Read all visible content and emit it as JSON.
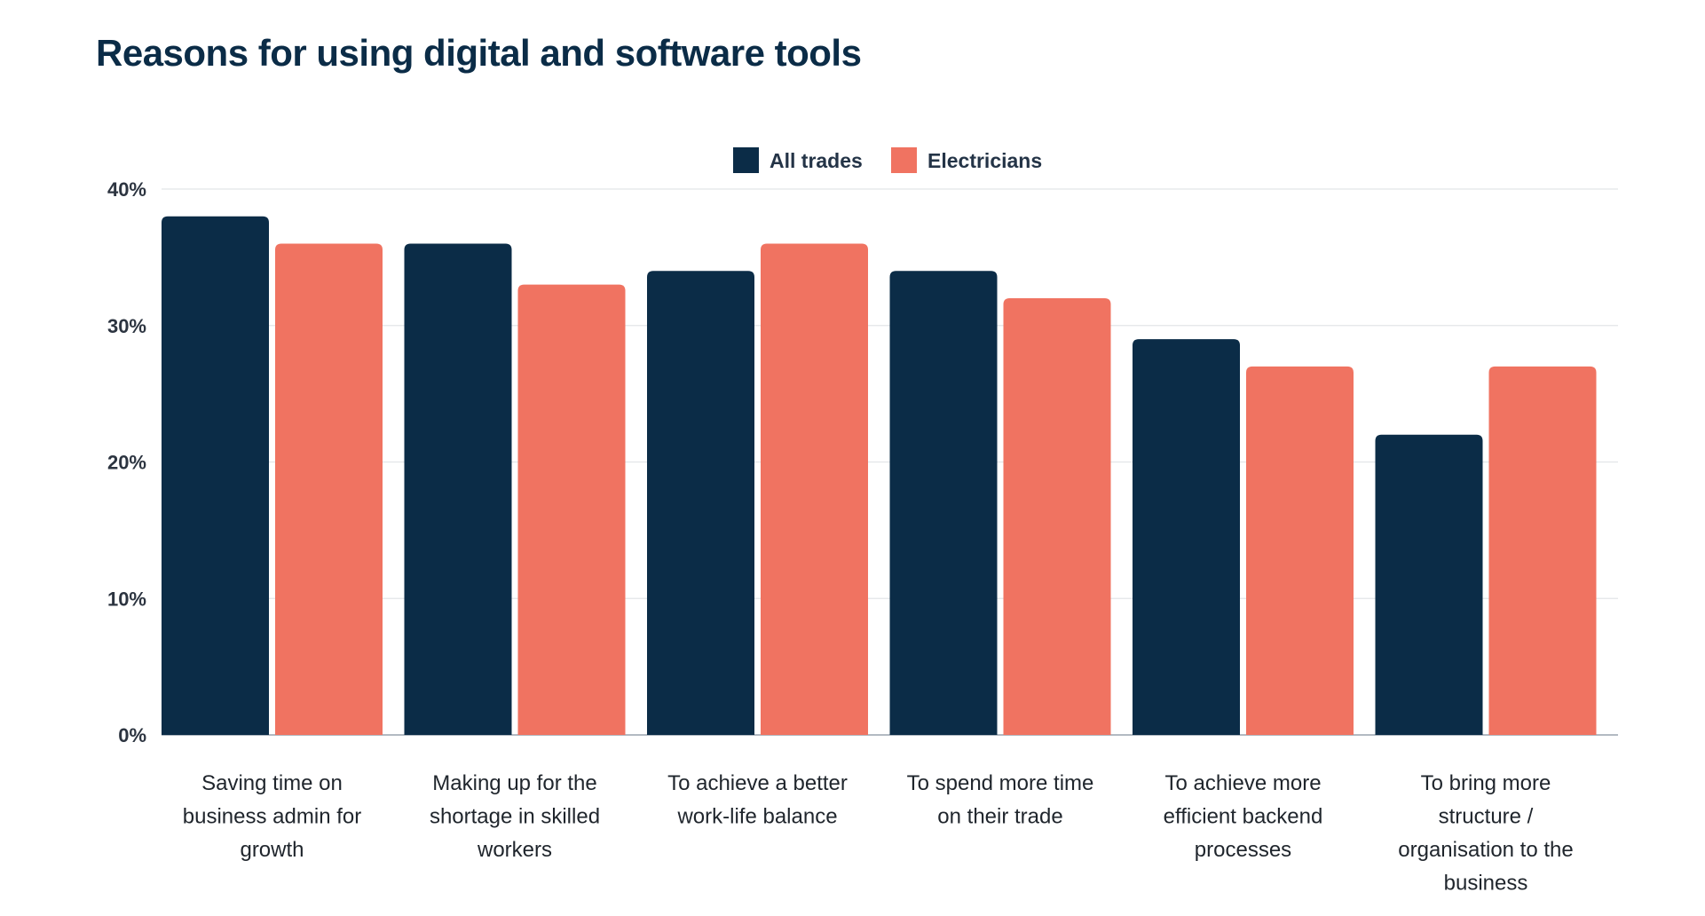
{
  "chart_data": {
    "type": "bar",
    "title": "Reasons for using digital and software tools",
    "categories": [
      [
        "Saving time on",
        "business admin for",
        "growth"
      ],
      [
        "Making up for the",
        "shortage in skilled",
        "workers"
      ],
      [
        "To achieve a better",
        "work-life balance"
      ],
      [
        "To spend more time",
        "on their trade"
      ],
      [
        "To achieve more",
        "efficient backend",
        "processes"
      ],
      [
        "To bring more",
        "structure /",
        "organisation to the",
        "business"
      ]
    ],
    "series": [
      {
        "name": "All trades",
        "color": "#0b2c47",
        "values": [
          38,
          36,
          34,
          34,
          29,
          22
        ]
      },
      {
        "name": "Electricians",
        "color": "#f07361",
        "values": [
          36,
          33,
          36,
          32,
          27,
          27
        ]
      }
    ],
    "ylim": [
      0,
      40
    ],
    "yticks": [
      0,
      10,
      20,
      30,
      40
    ],
    "ytick_labels": [
      "0%",
      "10%",
      "20%",
      "30%",
      "40%"
    ],
    "xlabel": "",
    "ylabel": "",
    "grid": true,
    "legend_position": "top-center"
  }
}
